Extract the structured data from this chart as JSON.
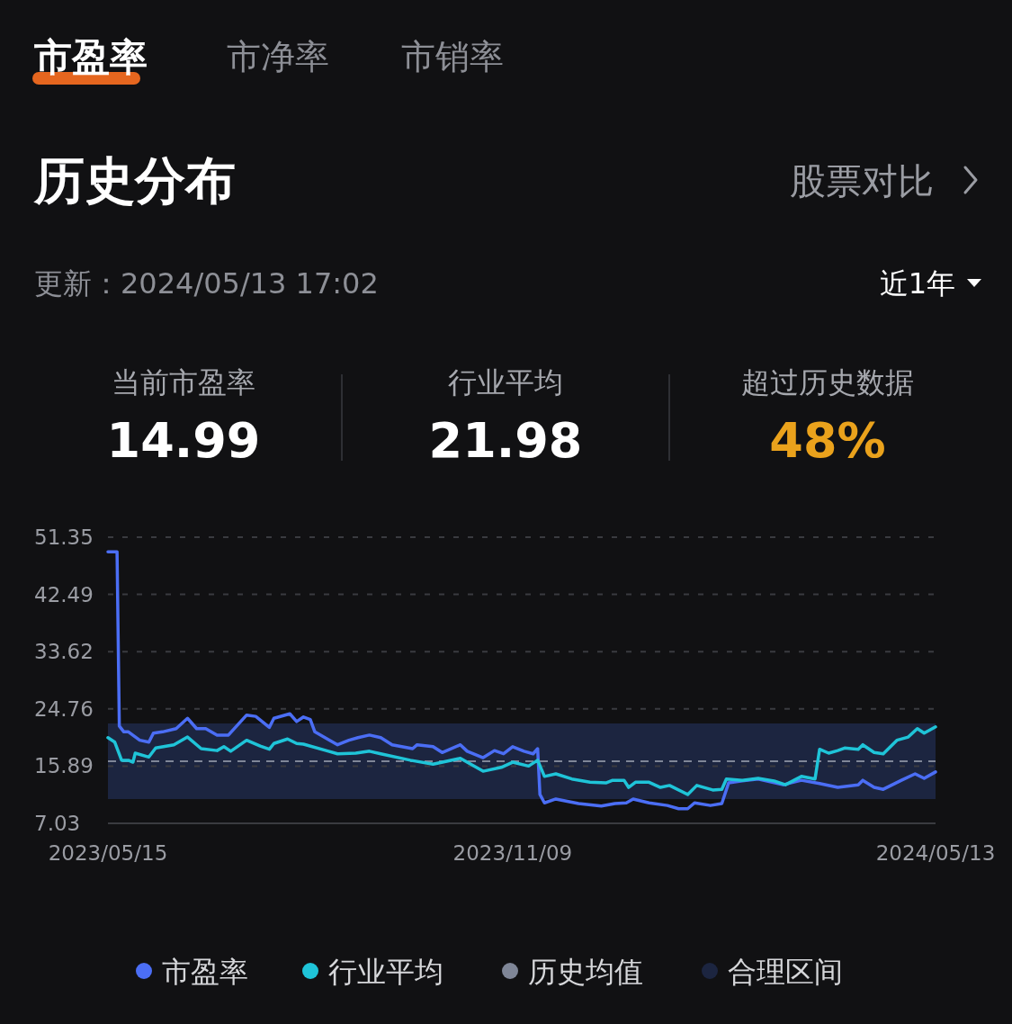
{
  "chart_data": {
    "type": "line",
    "title": "历史分布",
    "annotations": [
      "市盈率",
      "市净率",
      "市销率",
      "股票对比",
      "更新：2024/05/13 17:02",
      "近1年",
      "当前市盈率",
      "14.99",
      "行业平均",
      "21.98",
      "超过历史数据",
      "48%"
    ],
    "xlim": [
      "2023-05-15",
      "2024-05-13"
    ],
    "xticks": [
      {
        "value": "2023-05-15",
        "label": "2023/05/15"
      },
      {
        "value": "2023-11-09",
        "label": "2023/11/09"
      },
      {
        "value": "2024-05-13",
        "label": "2024/05/13"
      }
    ],
    "ylim": [
      7.03,
      51.35
    ],
    "yticks": [
      7.03,
      15.89,
      24.76,
      33.62,
      42.49,
      51.35
    ],
    "grid": "y",
    "legend": "bottom",
    "ref_lines": [
      {
        "axis": "y",
        "value": 16.65,
        "label": "历史均值",
        "color": "#7f8697",
        "line_style": "dashed"
      }
    ],
    "bands": [
      {
        "axis": "y",
        "from": 10.79,
        "to": 22.5,
        "label": "合理区间",
        "color": "#1c2540"
      }
    ],
    "series": [
      {
        "name": "市盈率",
        "color": "#4b6ef5",
        "x": [
          "2023-05-15",
          "2023-05-19",
          "2023-05-20",
          "2023-05-22",
          "2023-05-24",
          "2023-05-29",
          "2023-06-02",
          "2023-06-04",
          "2023-06-08",
          "2023-06-14",
          "2023-06-19",
          "2023-06-23",
          "2023-06-27",
          "2023-07-02",
          "2023-07-07",
          "2023-07-15",
          "2023-07-19",
          "2023-07-25",
          "2023-07-27",
          "2023-08-03",
          "2023-08-06",
          "2023-08-09",
          "2023-08-12",
          "2023-08-14",
          "2023-08-20",
          "2023-08-24",
          "2023-08-29",
          "2023-09-02",
          "2023-09-07",
          "2023-09-12",
          "2023-09-17",
          "2023-09-26",
          "2023-09-28",
          "2023-10-05",
          "2023-10-09",
          "2023-10-17",
          "2023-10-20",
          "2023-10-27",
          "2023-11-01",
          "2023-11-05",
          "2023-11-09",
          "2023-11-14",
          "2023-11-18",
          "2023-11-20",
          "2023-11-21",
          "2023-11-23",
          "2023-11-28",
          "2023-12-08",
          "2023-12-18",
          "2023-12-24",
          "2023-12-29",
          "2024-01-01",
          "2024-01-08",
          "2024-01-16",
          "2024-01-21",
          "2024-01-25",
          "2024-01-28",
          "2024-02-04",
          "2024-02-09",
          "2024-02-12",
          "2024-02-18",
          "2024-02-25",
          "2024-03-07",
          "2024-03-15",
          "2024-03-23",
          "2024-03-31",
          "2024-04-09",
          "2024-04-11",
          "2024-04-16",
          "2024-04-20",
          "2024-04-28",
          "2024-05-04",
          "2024-05-08",
          "2024-05-13"
        ],
        "values": [
          49.1,
          49.1,
          22.1,
          21.2,
          21.2,
          19.9,
          19.6,
          21.0,
          21.2,
          21.7,
          23.3,
          21.7,
          21.7,
          20.7,
          20.7,
          23.8,
          23.6,
          21.9,
          23.3,
          24.0,
          22.8,
          23.5,
          23.1,
          21.2,
          20.0,
          19.2,
          19.9,
          20.3,
          20.7,
          20.3,
          19.2,
          18.6,
          19.2,
          18.9,
          18.0,
          19.2,
          18.2,
          17.2,
          18.3,
          17.8,
          18.9,
          18.2,
          17.8,
          18.6,
          11.5,
          10.2,
          10.8,
          10.1,
          9.7,
          10.1,
          10.2,
          10.8,
          10.2,
          9.8,
          9.3,
          9.3,
          10.2,
          9.8,
          10.1,
          13.3,
          13.6,
          13.9,
          13.0,
          13.7,
          13.2,
          12.6,
          13.0,
          13.7,
          12.6,
          12.3,
          13.7,
          14.7,
          14.0,
          14.99
        ]
      },
      {
        "name": "行业平均",
        "color": "#1fc4d8",
        "x": [
          "2023-05-15",
          "2023-05-18",
          "2023-05-21",
          "2023-05-24",
          "2023-05-26",
          "2023-05-27",
          "2023-06-02",
          "2023-06-05",
          "2023-06-13",
          "2023-06-19",
          "2023-06-25",
          "2023-07-02",
          "2023-07-05",
          "2023-07-08",
          "2023-07-15",
          "2023-07-21",
          "2023-07-25",
          "2023-07-27",
          "2023-08-02",
          "2023-08-06",
          "2023-08-09",
          "2023-08-20",
          "2023-08-24",
          "2023-09-01",
          "2023-09-07",
          "2023-09-12",
          "2023-09-25",
          "2023-10-05",
          "2023-10-17",
          "2023-10-27",
          "2023-11-04",
          "2023-11-09",
          "2023-11-16",
          "2023-11-20",
          "2023-11-23",
          "2023-11-28",
          "2023-12-05",
          "2023-12-13",
          "2023-12-20",
          "2023-12-23",
          "2023-12-28",
          "2023-12-30",
          "2024-01-02",
          "2024-01-08",
          "2024-01-13",
          "2024-01-17",
          "2024-01-25",
          "2024-01-29",
          "2024-02-05",
          "2024-02-09",
          "2024-02-11",
          "2024-02-18",
          "2024-02-25",
          "2024-03-03",
          "2024-03-08",
          "2024-03-15",
          "2024-03-21",
          "2024-03-23",
          "2024-03-27",
          "2024-03-31",
          "2024-04-03",
          "2024-04-09",
          "2024-04-11",
          "2024-04-16",
          "2024-04-20",
          "2024-04-26",
          "2024-05-01",
          "2024-05-05",
          "2024-05-08",
          "2024-05-13"
        ],
        "values": [
          20.3,
          19.6,
          16.8,
          16.8,
          16.5,
          17.9,
          17.3,
          18.7,
          19.2,
          20.4,
          18.6,
          18.3,
          18.9,
          18.2,
          19.9,
          19.0,
          18.5,
          19.4,
          20.1,
          19.4,
          19.3,
          18.2,
          17.8,
          17.9,
          18.2,
          17.8,
          16.8,
          16.2,
          17.1,
          15.1,
          15.7,
          16.5,
          15.9,
          16.8,
          14.3,
          14.7,
          13.9,
          13.4,
          13.3,
          13.7,
          13.7,
          12.6,
          13.4,
          13.4,
          12.6,
          12.9,
          11.5,
          12.9,
          12.2,
          12.3,
          13.9,
          13.7,
          14.0,
          13.6,
          13.0,
          14.3,
          13.9,
          18.5,
          17.9,
          18.3,
          18.7,
          18.5,
          19.2,
          18.0,
          17.8,
          19.9,
          20.4,
          21.7,
          21.0,
          21.98
        ]
      }
    ]
  }
}
